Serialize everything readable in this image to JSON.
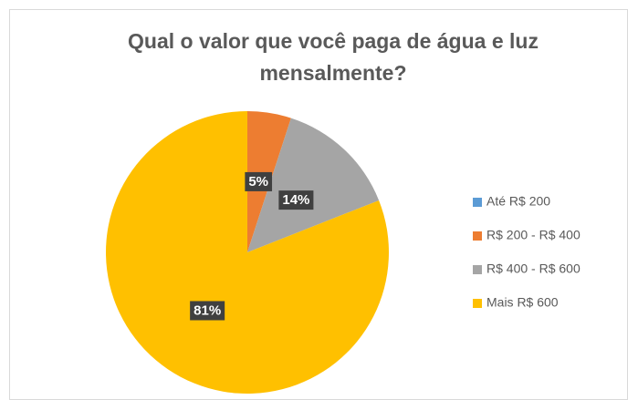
{
  "chart_data": {
    "type": "pie",
    "title": "Qual o valor que você paga de água e luz mensalmente?",
    "categories": [
      "Até R$ 200",
      "R$ 200 - R$ 400",
      "R$ 400 - R$ 600",
      "Mais R$ 600"
    ],
    "values": [
      0,
      5,
      14,
      81
    ],
    "value_labels": [
      null,
      "5%",
      "14%",
      "81%"
    ],
    "colors": [
      "#5b9bd5",
      "#ed7d31",
      "#a5a5a5",
      "#ffc000"
    ],
    "legend": "right"
  }
}
